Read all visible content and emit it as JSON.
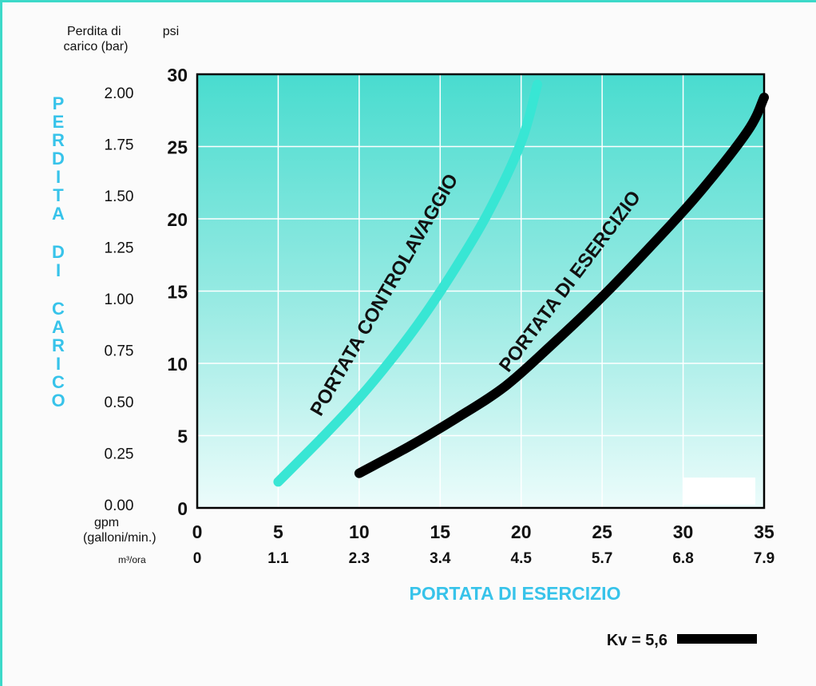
{
  "chart_data": {
    "type": "line",
    "left_header": "Perdita di\ncarico (bar)",
    "right_header": "psi",
    "vertical_title": "PERDITA DI CARICO",
    "bar_ticks": [
      "0.00",
      "0.25",
      "0.50",
      "0.75",
      "1.00",
      "1.25",
      "1.50",
      "1.75",
      "2.00"
    ],
    "psi_ticks": [
      "0",
      "5",
      "10",
      "15",
      "20",
      "25",
      "30"
    ],
    "gpm_label": "gpm\n(galloni/min.)",
    "gpm_ticks": [
      "0",
      "5",
      "10",
      "15",
      "20",
      "25",
      "30",
      "35"
    ],
    "m3_label": "m³/ora",
    "m3_ticks": [
      "0",
      "1.1",
      "2.3",
      "3.4",
      "4.5",
      "5.7",
      "6.8",
      "7.9"
    ],
    "xlabel": "PORTATA DI ESERCIZIO",
    "xlim": [
      0,
      35
    ],
    "ylim": [
      0,
      30
    ],
    "grid": true,
    "series": [
      {
        "name": "PORTATA CONTROLAVAGGIO",
        "color": "#38e6d4",
        "x": [
          5,
          8,
          10,
          12,
          14,
          16,
          18,
          20,
          21
        ],
        "y": [
          1.8,
          5.2,
          7.6,
          10.3,
          13.3,
          16.7,
          20.5,
          25.3,
          29.3
        ]
      },
      {
        "name": "PORTATA DI ESERCIZIO",
        "color": "#000000",
        "x": [
          10,
          13,
          16,
          19,
          22,
          25,
          28,
          31,
          34,
          35
        ],
        "y": [
          2.4,
          4.2,
          6.2,
          8.4,
          11.4,
          14.6,
          18.1,
          21.8,
          26.1,
          28.4
        ]
      }
    ],
    "legend": {
      "label": "Kv = 5,6",
      "color": "#000000",
      "placement": "bottom-right"
    },
    "colors": {
      "accent": "#37c3ea",
      "frame": "#3cd9c9",
      "plot_top": "#49dccf",
      "plot_bottom": "#ecfcfb"
    }
  }
}
